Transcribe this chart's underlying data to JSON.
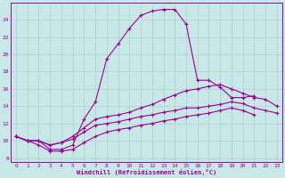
{
  "xlabel": "Windchill (Refroidissement éolien,°C)",
  "bg_color": "#c8e8e8",
  "line_color": "#990099",
  "grid_color": "#b0d0d0",
  "xlim": [
    -0.5,
    23.5
  ],
  "ylim": [
    7.5,
    26.0
  ],
  "xticks": [
    0,
    1,
    2,
    3,
    4,
    5,
    6,
    7,
    8,
    9,
    10,
    11,
    12,
    13,
    14,
    15,
    16,
    17,
    18,
    19,
    20,
    21,
    22,
    23
  ],
  "yticks": [
    8,
    10,
    12,
    14,
    16,
    18,
    20,
    22,
    24
  ],
  "line1_x": [
    0,
    1,
    2,
    3,
    4,
    5,
    6,
    7,
    8,
    9,
    10,
    11,
    12,
    13,
    14,
    15,
    16,
    17,
    18,
    19,
    20,
    21
  ],
  "line1_y": [
    10.5,
    10.0,
    10.0,
    9.0,
    9.0,
    9.5,
    12.5,
    14.5,
    19.5,
    21.2,
    23.0,
    24.5,
    25.0,
    25.2,
    25.2,
    23.5,
    17.0,
    17.0,
    16.2,
    15.0,
    15.0,
    15.2
  ],
  "line2_x": [
    0,
    1,
    2,
    3,
    4,
    5,
    6,
    7,
    8,
    9,
    10,
    11,
    12,
    13,
    14,
    15,
    16,
    17,
    18,
    19,
    20,
    21,
    22,
    23
  ],
  "line2_y": [
    10.5,
    10.0,
    10.0,
    9.5,
    9.8,
    10.5,
    11.5,
    12.5,
    12.8,
    13.0,
    13.3,
    13.8,
    14.2,
    14.8,
    15.3,
    15.8,
    16.0,
    16.3,
    16.5,
    16.0,
    15.5,
    15.0,
    14.8,
    14.0
  ],
  "line3_x": [
    0,
    1,
    2,
    3,
    4,
    5,
    6,
    7,
    8,
    9,
    10,
    11,
    12,
    13,
    14,
    15,
    16,
    17,
    18,
    19,
    20,
    21,
    22,
    23
  ],
  "line3_y": [
    10.5,
    10.0,
    10.0,
    9.5,
    9.8,
    10.2,
    11.0,
    11.8,
    12.0,
    12.2,
    12.5,
    12.8,
    13.0,
    13.3,
    13.5,
    13.8,
    13.8,
    14.0,
    14.2,
    14.5,
    14.3,
    13.8,
    13.5,
    13.2
  ],
  "line4_x": [
    0,
    1,
    2,
    3,
    4,
    5,
    6,
    7,
    8,
    9,
    10,
    11,
    12,
    13,
    14,
    15,
    16,
    17,
    18,
    19,
    20,
    21,
    22
  ],
  "line4_y": [
    10.5,
    10.0,
    9.5,
    8.8,
    8.8,
    9.0,
    9.8,
    10.5,
    11.0,
    11.3,
    11.5,
    11.8,
    12.0,
    12.3,
    12.5,
    12.8,
    13.0,
    13.2,
    13.5,
    13.8,
    13.5,
    13.0,
    null
  ]
}
